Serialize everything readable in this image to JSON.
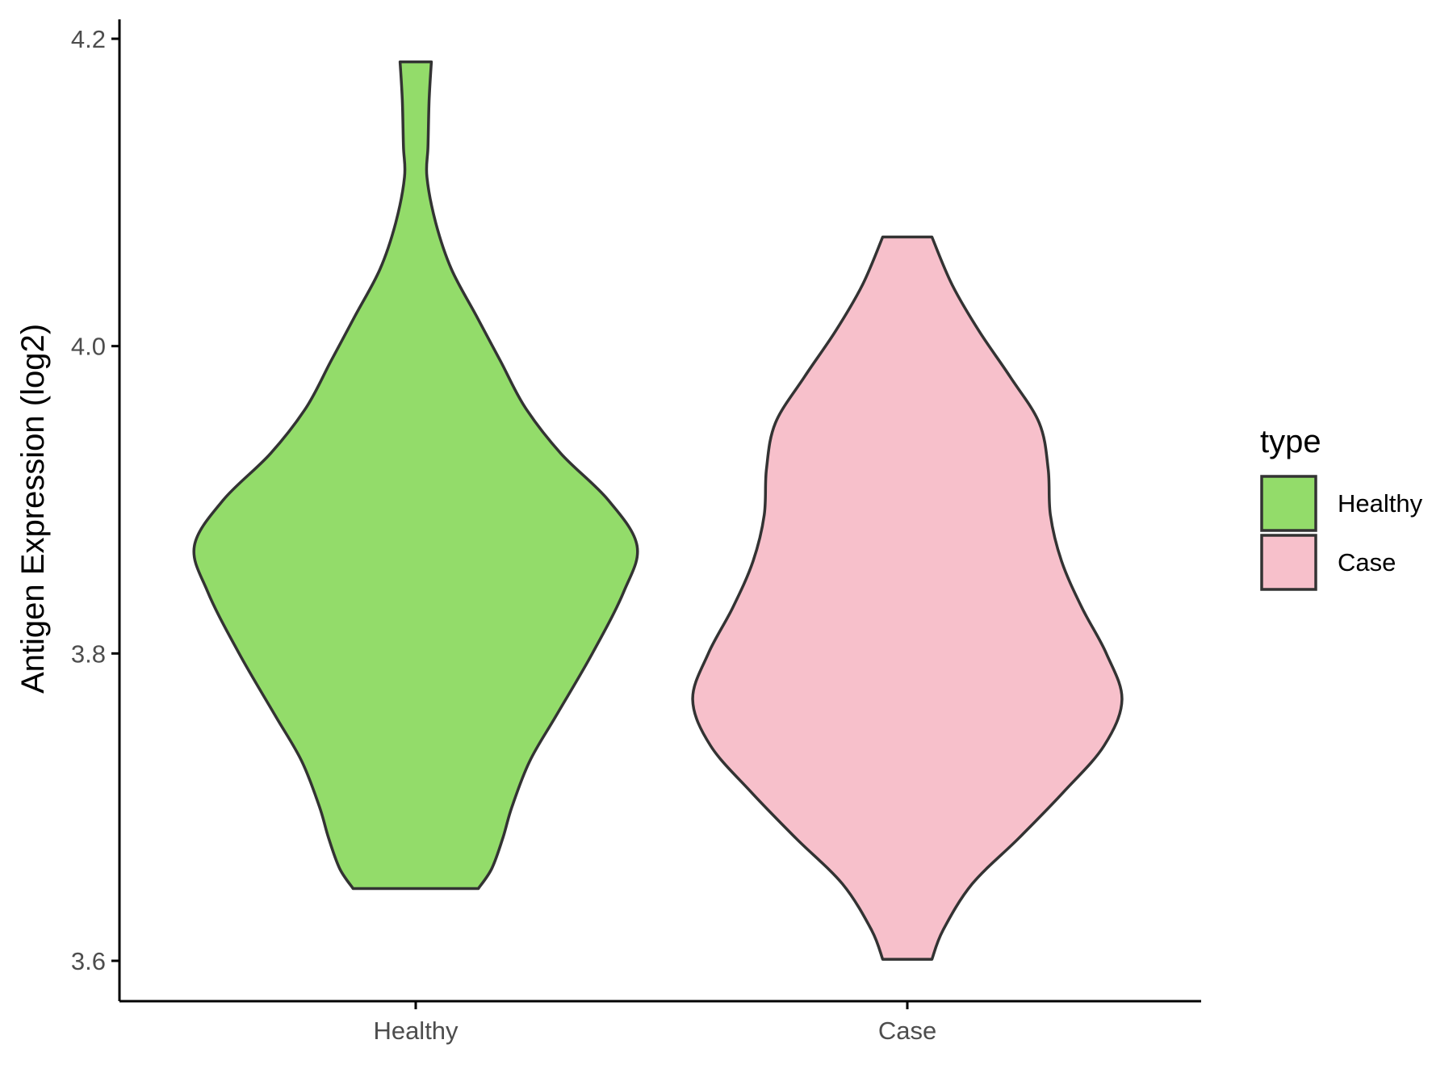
{
  "chart_data": {
    "type": "violin",
    "title": "",
    "xlabel": "",
    "ylabel": "Antigen Expression (log2)",
    "ylim": [
      3.575,
      4.215
    ],
    "yticks": [
      3.6,
      3.8,
      4.0,
      4.2
    ],
    "ytick_labels": [
      "3.6",
      "3.8",
      "4.0",
      "4.2"
    ],
    "categories": [
      "Healthy",
      "Case"
    ],
    "grid": false,
    "legend": {
      "title": "type",
      "position": "right",
      "entries": [
        "Healthy",
        "Case"
      ]
    },
    "series": [
      {
        "name": "Healthy",
        "color": "#93dc6a",
        "min": 3.647,
        "max": 4.185,
        "density_profile": [
          [
            3.647,
            0.28
          ],
          [
            3.66,
            0.34
          ],
          [
            3.68,
            0.39
          ],
          [
            3.7,
            0.43
          ],
          [
            3.73,
            0.51
          ],
          [
            3.76,
            0.63
          ],
          [
            3.8,
            0.79
          ],
          [
            3.84,
            0.93
          ],
          [
            3.87,
            0.99
          ],
          [
            3.9,
            0.86
          ],
          [
            3.93,
            0.65
          ],
          [
            3.96,
            0.49
          ],
          [
            3.99,
            0.38
          ],
          [
            4.02,
            0.27
          ],
          [
            4.05,
            0.16
          ],
          [
            4.08,
            0.09
          ],
          [
            4.11,
            0.05
          ],
          [
            4.13,
            0.055
          ],
          [
            4.16,
            0.06
          ],
          [
            4.185,
            0.07
          ]
        ]
      },
      {
        "name": "Case",
        "color": "#f7c0cb",
        "min": 3.601,
        "max": 4.071,
        "density_profile": [
          [
            3.601,
            0.11
          ],
          [
            3.62,
            0.16
          ],
          [
            3.65,
            0.29
          ],
          [
            3.68,
            0.5
          ],
          [
            3.71,
            0.7
          ],
          [
            3.74,
            0.88
          ],
          [
            3.77,
            0.96
          ],
          [
            3.8,
            0.89
          ],
          [
            3.83,
            0.78
          ],
          [
            3.86,
            0.69
          ],
          [
            3.89,
            0.64
          ],
          [
            3.92,
            0.63
          ],
          [
            3.95,
            0.59
          ],
          [
            3.98,
            0.46
          ],
          [
            4.01,
            0.32
          ],
          [
            4.04,
            0.2
          ],
          [
            4.071,
            0.11
          ]
        ]
      }
    ]
  }
}
